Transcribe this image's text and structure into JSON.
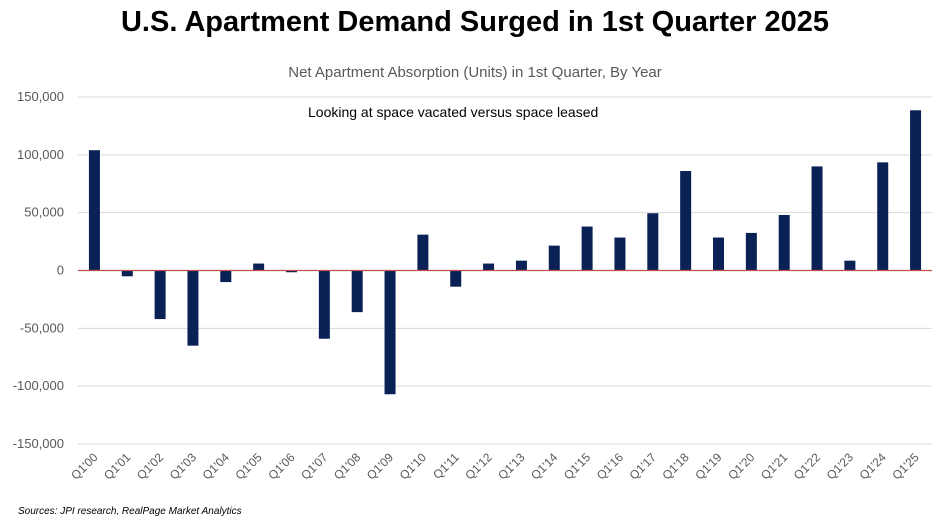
{
  "chart_data": {
    "type": "bar",
    "title": "U.S. Apartment Demand Surged in 1st Quarter 2025",
    "subtitle": "Net Apartment Absorption (Units) in 1st Quarter, By Year",
    "annotation": "Looking at space vacated versus space leased",
    "source": "Sources: JPI research, RealPage Market Analytics",
    "xlabel": "",
    "ylabel": "",
    "ylim": [
      -150000,
      150000
    ],
    "yticks": [
      150000,
      100000,
      50000,
      0,
      -50000,
      -100000,
      -150000
    ],
    "ytick_labels": [
      "150,000",
      "100,000",
      "50,000",
      "0",
      "-50,000",
      "-100,000",
      "-150,000"
    ],
    "grid": true,
    "categories": [
      "Q1'00",
      "Q1'01",
      "Q1'02",
      "Q1'03",
      "Q1'04",
      "Q1'05",
      "Q1'06",
      "Q1'07",
      "Q1'08",
      "Q1'09",
      "Q1'10",
      "Q1'11",
      "Q1'12",
      "Q1'13",
      "Q1'14",
      "Q1'15",
      "Q1'16",
      "Q1'17",
      "Q1'18",
      "Q1'19",
      "Q1'20",
      "Q1'21",
      "Q1'22",
      "Q1'23",
      "Q1'24",
      "Q1'25"
    ],
    "values": [
      104000,
      -5000,
      -42000,
      -65000,
      -10000,
      6000,
      -1500,
      -59000,
      -36000,
      -107000,
      31000,
      -14000,
      6000,
      8500,
      21500,
      38000,
      28500,
      49500,
      86000,
      28500,
      32500,
      48000,
      90000,
      8500,
      93500,
      138500
    ],
    "colors": {
      "bar": "#0a2156",
      "zero_line": "#c0504d",
      "grid": "#d9d9d9"
    }
  }
}
